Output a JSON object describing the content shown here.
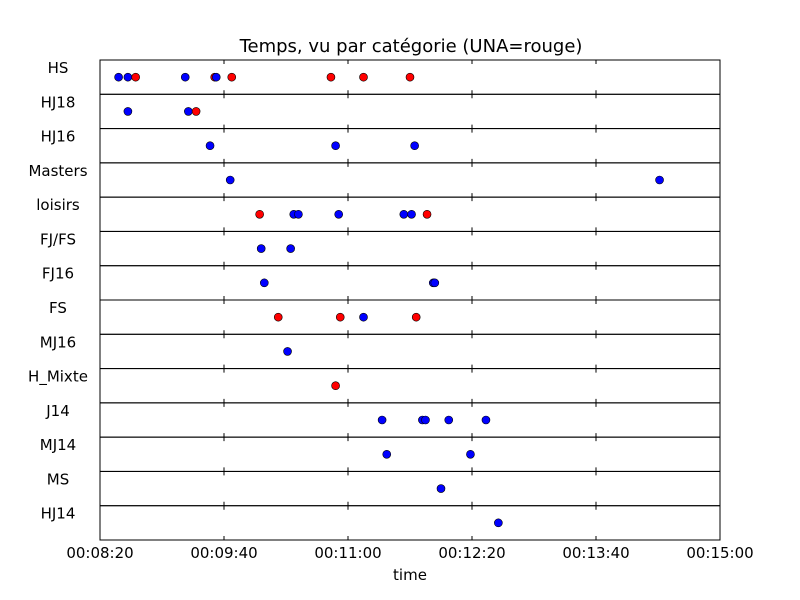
{
  "chart_data": {
    "type": "scatter",
    "title": "Temps, vu par catégorie (UNA=rouge)",
    "xlabel": "time",
    "ylabel": "",
    "xlim": [
      "00:08:20",
      "00:15:00"
    ],
    "x_ticks": [
      "00:08:20",
      "00:09:40",
      "00:11:00",
      "00:12:20",
      "00:13:40",
      "00:15:00"
    ],
    "grid": "vertical",
    "colors": {
      "club": "#ff0000",
      "other": "#0000ff"
    },
    "categories": [
      "HS",
      "HJ18",
      "HJ16",
      "Masters",
      "loisirs",
      "FJ/FS",
      "FJ16",
      "FS",
      "MJ16",
      "H_Mixte",
      "J14",
      "MJ14",
      "MS",
      "HJ14"
    ],
    "points": [
      {
        "category": "HS",
        "time": "00:08:32",
        "club": false
      },
      {
        "category": "HS",
        "time": "00:08:38",
        "club": false
      },
      {
        "category": "HS",
        "time": "00:08:43",
        "club": true
      },
      {
        "category": "HS",
        "time": "00:09:15",
        "club": false
      },
      {
        "category": "HS",
        "time": "00:09:34",
        "club": true
      },
      {
        "category": "HS",
        "time": "00:09:35",
        "club": false
      },
      {
        "category": "HS",
        "time": "00:09:45",
        "club": true
      },
      {
        "category": "HS",
        "time": "00:10:49",
        "club": true
      },
      {
        "category": "HS",
        "time": "00:11:10",
        "club": true
      },
      {
        "category": "HS",
        "time": "00:11:40",
        "club": true
      },
      {
        "category": "HJ18",
        "time": "00:08:38",
        "club": false
      },
      {
        "category": "HJ18",
        "time": "00:09:17",
        "club": false
      },
      {
        "category": "HJ18",
        "time": "00:09:22",
        "club": true
      },
      {
        "category": "HJ16",
        "time": "00:09:31",
        "club": false
      },
      {
        "category": "HJ16",
        "time": "00:10:52",
        "club": false
      },
      {
        "category": "HJ16",
        "time": "00:11:43",
        "club": false
      },
      {
        "category": "Masters",
        "time": "00:09:44",
        "club": false
      },
      {
        "category": "Masters",
        "time": "00:14:21",
        "club": false
      },
      {
        "category": "loisirs",
        "time": "00:10:03",
        "club": true
      },
      {
        "category": "loisirs",
        "time": "00:10:25",
        "club": false
      },
      {
        "category": "loisirs",
        "time": "00:10:28",
        "club": false
      },
      {
        "category": "loisirs",
        "time": "00:10:54",
        "club": false
      },
      {
        "category": "loisirs",
        "time": "00:11:36",
        "club": false
      },
      {
        "category": "loisirs",
        "time": "00:11:41",
        "club": false
      },
      {
        "category": "loisirs",
        "time": "00:11:51",
        "club": true
      },
      {
        "category": "FJ/FS",
        "time": "00:10:04",
        "club": false
      },
      {
        "category": "FJ/FS",
        "time": "00:10:23",
        "club": false
      },
      {
        "category": "FJ16",
        "time": "00:10:06",
        "club": false
      },
      {
        "category": "FJ16",
        "time": "00:11:55",
        "club": false
      },
      {
        "category": "FJ16",
        "time": "00:11:56",
        "club": false
      },
      {
        "category": "FS",
        "time": "00:10:15",
        "club": true
      },
      {
        "category": "FS",
        "time": "00:10:55",
        "club": true
      },
      {
        "category": "FS",
        "time": "00:11:10",
        "club": false
      },
      {
        "category": "FS",
        "time": "00:11:44",
        "club": true
      },
      {
        "category": "MJ16",
        "time": "00:10:21",
        "club": false
      },
      {
        "category": "H_Mixte",
        "time": "00:10:52",
        "club": true
      },
      {
        "category": "J14",
        "time": "00:11:22",
        "club": false
      },
      {
        "category": "J14",
        "time": "00:11:48",
        "club": false
      },
      {
        "category": "J14",
        "time": "00:11:50",
        "club": false
      },
      {
        "category": "J14",
        "time": "00:12:05",
        "club": false
      },
      {
        "category": "J14",
        "time": "00:12:29",
        "club": false
      },
      {
        "category": "MJ14",
        "time": "00:11:25",
        "club": false
      },
      {
        "category": "MJ14",
        "time": "00:12:19",
        "club": false
      },
      {
        "category": "MS",
        "time": "00:12:00",
        "club": false
      },
      {
        "category": "HJ14",
        "time": "00:12:37",
        "club": false
      }
    ]
  }
}
